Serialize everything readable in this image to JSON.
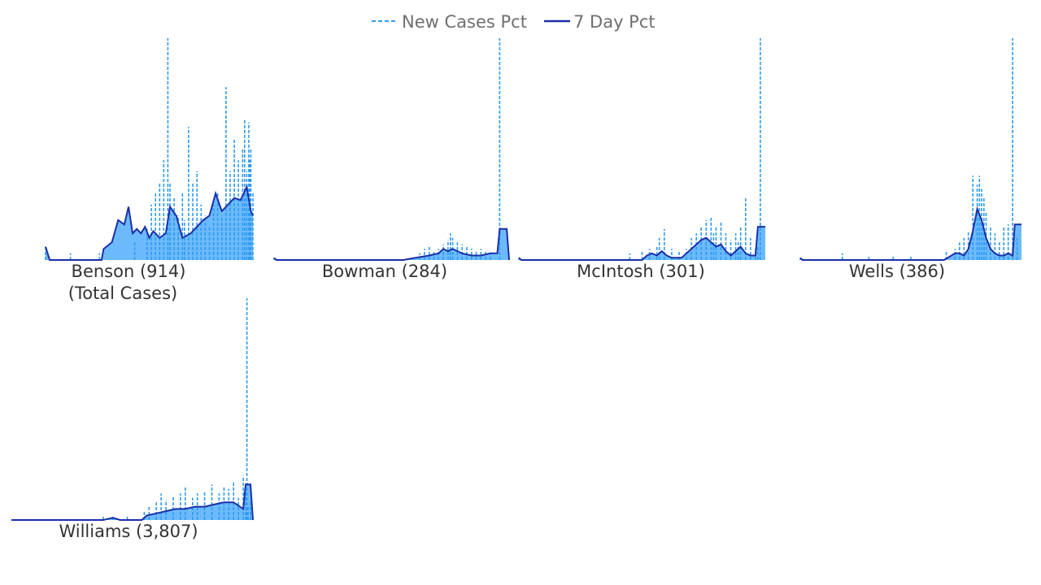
{
  "legend": {
    "items": [
      {
        "label": "New Cases Pct",
        "style": "dashed",
        "color": "#2e9bf0"
      },
      {
        "label": "7 Day Pct",
        "style": "solid",
        "color": "#1a2fa8"
      }
    ]
  },
  "colors": {
    "fill": "#52aefc",
    "new_cases": "#2e9bf0",
    "seven_day": "#1a2fa8"
  },
  "chart_data": [
    {
      "type": "area",
      "title": "Benson (914)",
      "subtitle": "(Total Cases)",
      "legend": "top-center",
      "grid": false,
      "ylim": [
        0,
        1
      ],
      "series": [
        {
          "name": "New Cases Pct",
          "spikes": [
            [
              0.0,
              0.06
            ],
            [
              0.12,
              0.03
            ],
            [
              0.26,
              0.03
            ],
            [
              0.43,
              0.08
            ],
            [
              0.49,
              0.14
            ],
            [
              0.51,
              0.25
            ],
            [
              0.53,
              0.3
            ],
            [
              0.55,
              0.35
            ],
            [
              0.57,
              0.45
            ],
            [
              0.59,
              1.0
            ],
            [
              0.6,
              0.35
            ],
            [
              0.62,
              0.28
            ],
            [
              0.64,
              0.2
            ],
            [
              0.66,
              0.3
            ],
            [
              0.67,
              0.18
            ],
            [
              0.69,
              0.6
            ],
            [
              0.71,
              0.35
            ],
            [
              0.73,
              0.4
            ],
            [
              0.75,
              0.25
            ],
            [
              0.77,
              0.2
            ],
            [
              0.79,
              0.15
            ],
            [
              0.81,
              0.25
            ],
            [
              0.83,
              0.3
            ],
            [
              0.85,
              0.2
            ],
            [
              0.87,
              0.78
            ],
            [
              0.89,
              0.4
            ],
            [
              0.91,
              0.55
            ],
            [
              0.93,
              0.45
            ],
            [
              0.95,
              0.5
            ],
            [
              0.96,
              0.63
            ],
            [
              0.97,
              0.4
            ],
            [
              0.98,
              0.62
            ],
            [
              0.985,
              0.45
            ],
            [
              0.99,
              0.5
            ],
            [
              1.0,
              0.3
            ]
          ]
        },
        {
          "name": "7 Day Pct",
          "points": [
            [
              0.0,
              0.06
            ],
            [
              0.02,
              0.0
            ],
            [
              0.27,
              0.0
            ],
            [
              0.28,
              0.05
            ],
            [
              0.32,
              0.08
            ],
            [
              0.35,
              0.18
            ],
            [
              0.38,
              0.16
            ],
            [
              0.4,
              0.24
            ],
            [
              0.42,
              0.12
            ],
            [
              0.44,
              0.14
            ],
            [
              0.46,
              0.12
            ],
            [
              0.48,
              0.15
            ],
            [
              0.5,
              0.1
            ],
            [
              0.52,
              0.13
            ],
            [
              0.55,
              0.1
            ],
            [
              0.58,
              0.12
            ],
            [
              0.6,
              0.24
            ],
            [
              0.63,
              0.2
            ],
            [
              0.66,
              0.1
            ],
            [
              0.7,
              0.12
            ],
            [
              0.73,
              0.15
            ],
            [
              0.76,
              0.18
            ],
            [
              0.79,
              0.2
            ],
            [
              0.82,
              0.3
            ],
            [
              0.85,
              0.22
            ],
            [
              0.88,
              0.25
            ],
            [
              0.91,
              0.28
            ],
            [
              0.94,
              0.27
            ],
            [
              0.97,
              0.33
            ],
            [
              0.99,
              0.22
            ],
            [
              1.0,
              0.2
            ]
          ]
        }
      ]
    },
    {
      "type": "area",
      "title": "Bowman (284)",
      "ylim": [
        0,
        1
      ],
      "series": [
        {
          "name": "New Cases Pct",
          "spikes": [
            [
              0.0,
              0.01
            ],
            [
              0.62,
              0.03
            ],
            [
              0.64,
              0.05
            ],
            [
              0.66,
              0.06
            ],
            [
              0.68,
              0.04
            ],
            [
              0.7,
              0.05
            ],
            [
              0.72,
              0.07
            ],
            [
              0.74,
              0.09
            ],
            [
              0.75,
              0.12
            ],
            [
              0.76,
              0.1
            ],
            [
              0.78,
              0.08
            ],
            [
              0.8,
              0.07
            ],
            [
              0.82,
              0.06
            ],
            [
              0.84,
              0.05
            ],
            [
              0.86,
              0.04
            ],
            [
              0.88,
              0.05
            ],
            [
              0.9,
              0.04
            ],
            [
              0.92,
              0.03
            ],
            [
              0.96,
              1.0
            ]
          ]
        },
        {
          "name": "7 Day Pct",
          "points": [
            [
              0.0,
              0.01
            ],
            [
              0.01,
              0.0
            ],
            [
              0.55,
              0.0
            ],
            [
              0.6,
              0.01
            ],
            [
              0.66,
              0.02
            ],
            [
              0.7,
              0.03
            ],
            [
              0.72,
              0.05
            ],
            [
              0.74,
              0.04
            ],
            [
              0.76,
              0.05
            ],
            [
              0.78,
              0.04
            ],
            [
              0.8,
              0.03
            ],
            [
              0.84,
              0.02
            ],
            [
              0.88,
              0.02
            ],
            [
              0.92,
              0.03
            ],
            [
              0.95,
              0.03
            ],
            [
              0.96,
              0.14
            ],
            [
              0.99,
              0.14
            ],
            [
              1.0,
              0.0
            ]
          ]
        }
      ]
    },
    {
      "type": "area",
      "title": "McIntosh (301)",
      "ylim": [
        0,
        1
      ],
      "series": [
        {
          "name": "New Cases Pct",
          "spikes": [
            [
              0.0,
              0.01
            ],
            [
              0.45,
              0.03
            ],
            [
              0.5,
              0.04
            ],
            [
              0.53,
              0.05
            ],
            [
              0.56,
              0.06
            ],
            [
              0.57,
              0.1
            ],
            [
              0.59,
              0.14
            ],
            [
              0.62,
              0.05
            ],
            [
              0.65,
              0.04
            ],
            [
              0.68,
              0.05
            ],
            [
              0.7,
              0.1
            ],
            [
              0.72,
              0.12
            ],
            [
              0.74,
              0.15
            ],
            [
              0.76,
              0.18
            ],
            [
              0.78,
              0.19
            ],
            [
              0.79,
              0.12
            ],
            [
              0.8,
              0.15
            ],
            [
              0.82,
              0.17
            ],
            [
              0.84,
              0.12
            ],
            [
              0.86,
              0.09
            ],
            [
              0.88,
              0.12
            ],
            [
              0.89,
              0.08
            ],
            [
              0.9,
              0.15
            ],
            [
              0.92,
              0.28
            ],
            [
              0.94,
              0.1
            ],
            [
              0.96,
              0.05
            ],
            [
              0.97,
              0.06
            ],
            [
              0.98,
              1.0
            ]
          ]
        },
        {
          "name": "7 Day Pct",
          "points": [
            [
              0.0,
              0.01
            ],
            [
              0.01,
              0.0
            ],
            [
              0.5,
              0.0
            ],
            [
              0.52,
              0.02
            ],
            [
              0.54,
              0.03
            ],
            [
              0.56,
              0.02
            ],
            [
              0.58,
              0.04
            ],
            [
              0.6,
              0.02
            ],
            [
              0.62,
              0.01
            ],
            [
              0.66,
              0.01
            ],
            [
              0.68,
              0.03
            ],
            [
              0.7,
              0.05
            ],
            [
              0.72,
              0.07
            ],
            [
              0.74,
              0.09
            ],
            [
              0.76,
              0.1
            ],
            [
              0.78,
              0.08
            ],
            [
              0.8,
              0.06
            ],
            [
              0.82,
              0.07
            ],
            [
              0.84,
              0.04
            ],
            [
              0.86,
              0.02
            ],
            [
              0.88,
              0.04
            ],
            [
              0.9,
              0.06
            ],
            [
              0.92,
              0.03
            ],
            [
              0.94,
              0.02
            ],
            [
              0.96,
              0.02
            ],
            [
              0.97,
              0.15
            ],
            [
              1.0,
              0.15
            ]
          ]
        }
      ]
    },
    {
      "type": "area",
      "title": "Wells (386)",
      "ylim": [
        0,
        1
      ],
      "series": [
        {
          "name": "New Cases Pct",
          "spikes": [
            [
              0.0,
              0.01
            ],
            [
              0.19,
              0.03
            ],
            [
              0.31,
              0.02
            ],
            [
              0.42,
              0.02
            ],
            [
              0.5,
              0.02
            ],
            [
              0.66,
              0.04
            ],
            [
              0.7,
              0.05
            ],
            [
              0.72,
              0.08
            ],
            [
              0.74,
              0.1
            ],
            [
              0.76,
              0.13
            ],
            [
              0.78,
              0.38
            ],
            [
              0.8,
              0.34
            ],
            [
              0.81,
              0.38
            ],
            [
              0.82,
              0.32
            ],
            [
              0.83,
              0.28
            ],
            [
              0.84,
              0.22
            ],
            [
              0.86,
              0.15
            ],
            [
              0.88,
              0.12
            ],
            [
              0.9,
              0.08
            ],
            [
              0.92,
              0.15
            ],
            [
              0.94,
              0.16
            ],
            [
              0.96,
              1.0
            ],
            [
              0.98,
              0.1
            ]
          ]
        },
        {
          "name": "7 Day Pct",
          "points": [
            [
              0.0,
              0.01
            ],
            [
              0.01,
              0.0
            ],
            [
              0.65,
              0.0
            ],
            [
              0.7,
              0.03
            ],
            [
              0.72,
              0.03
            ],
            [
              0.74,
              0.02
            ],
            [
              0.76,
              0.05
            ],
            [
              0.78,
              0.13
            ],
            [
              0.8,
              0.23
            ],
            [
              0.82,
              0.18
            ],
            [
              0.84,
              0.1
            ],
            [
              0.86,
              0.05
            ],
            [
              0.88,
              0.03
            ],
            [
              0.9,
              0.02
            ],
            [
              0.92,
              0.02
            ],
            [
              0.94,
              0.03
            ],
            [
              0.96,
              0.02
            ],
            [
              0.97,
              0.16
            ],
            [
              1.0,
              0.16
            ]
          ]
        }
      ]
    },
    {
      "type": "area",
      "title": "Williams (3,807)",
      "ylim": [
        0,
        1
      ],
      "series": [
        {
          "name": "New Cases Pct",
          "spikes": [
            [
              0.0,
              0.0
            ],
            [
              0.38,
              0.02
            ],
            [
              0.42,
              0.02
            ],
            [
              0.48,
              0.02
            ],
            [
              0.55,
              0.04
            ],
            [
              0.57,
              0.06
            ],
            [
              0.6,
              0.08
            ],
            [
              0.62,
              0.12
            ],
            [
              0.64,
              0.09
            ],
            [
              0.67,
              0.11
            ],
            [
              0.7,
              0.12
            ],
            [
              0.72,
              0.15
            ],
            [
              0.75,
              0.1
            ],
            [
              0.77,
              0.12
            ],
            [
              0.8,
              0.13
            ],
            [
              0.83,
              0.16
            ],
            [
              0.86,
              0.12
            ],
            [
              0.88,
              0.15
            ],
            [
              0.9,
              0.14
            ],
            [
              0.92,
              0.17
            ],
            [
              0.94,
              0.1
            ],
            [
              0.96,
              0.2
            ],
            [
              0.97,
              0.12
            ],
            [
              0.98,
              0.06
            ],
            [
              0.975,
              1.0
            ],
            [
              0.99,
              0.08
            ]
          ]
        },
        {
          "name": "7 Day Pct",
          "points": [
            [
              0.0,
              0.0
            ],
            [
              0.38,
              0.0
            ],
            [
              0.42,
              0.01
            ],
            [
              0.45,
              0.0
            ],
            [
              0.54,
              0.0
            ],
            [
              0.56,
              0.02
            ],
            [
              0.6,
              0.03
            ],
            [
              0.64,
              0.04
            ],
            [
              0.68,
              0.05
            ],
            [
              0.72,
              0.05
            ],
            [
              0.76,
              0.06
            ],
            [
              0.8,
              0.06
            ],
            [
              0.84,
              0.07
            ],
            [
              0.88,
              0.08
            ],
            [
              0.92,
              0.08
            ],
            [
              0.96,
              0.05
            ],
            [
              0.97,
              0.16
            ],
            [
              0.99,
              0.16
            ],
            [
              1.0,
              0.0
            ]
          ]
        }
      ]
    }
  ]
}
